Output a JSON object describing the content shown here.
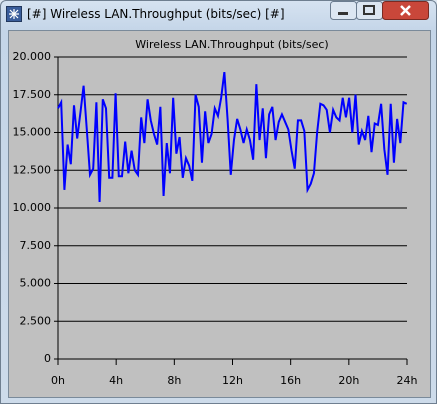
{
  "window": {
    "title": "[#] Wireless LAN.Throughput (bits/sec) [#]"
  },
  "chart_data": {
    "type": "line",
    "title": "Wireless LAN.Throughput (bits/sec)",
    "x": [
      0,
      0.22,
      0.44,
      0.66,
      0.88,
      1.1,
      1.32,
      1.54,
      1.76,
      1.98,
      2.2,
      2.42,
      2.64,
      2.86,
      3.08,
      3.3,
      3.52,
      3.74,
      3.96,
      4.18,
      4.4,
      4.62,
      4.84,
      5.06,
      5.28,
      5.5,
      5.72,
      5.94,
      6.16,
      6.38,
      6.6,
      6.82,
      7.04,
      7.26,
      7.48,
      7.7,
      7.92,
      8.14,
      8.36,
      8.58,
      8.8,
      9.02,
      9.24,
      9.46,
      9.68,
      9.9,
      10.12,
      10.34,
      10.56,
      10.78,
      11,
      11.22,
      11.44,
      11.66,
      11.88,
      12.1,
      12.32,
      12.54,
      12.76,
      12.98,
      13.2,
      13.42,
      13.64,
      13.86,
      14.08,
      14.3,
      14.52,
      14.74,
      14.96,
      15.18,
      15.4,
      15.62,
      15.84,
      16.06,
      16.28,
      16.5,
      16.72,
      16.94,
      17.16,
      17.38,
      17.6,
      17.82,
      18.04,
      18.26,
      18.48,
      18.7,
      18.92,
      19.14,
      19.36,
      19.58,
      19.8,
      20.02,
      20.24,
      20.46,
      20.68,
      20.9,
      21.12,
      21.34,
      21.56,
      21.78,
      22,
      22.22,
      22.44,
      22.66,
      22.88,
      23.1,
      23.32,
      23.54,
      23.76,
      23.98
    ],
    "series": [
      {
        "color": "#0000ff",
        "values": [
          16600,
          17000,
          11200,
          14200,
          12900,
          16800,
          14600,
          16300,
          18100,
          15200,
          12200,
          12600,
          17000,
          10400,
          17200,
          16600,
          12000,
          12000,
          17600,
          12100,
          12100,
          14400,
          12300,
          13800,
          12500,
          12200,
          16000,
          14300,
          17200,
          15800,
          14900,
          14200,
          16700,
          10800,
          14300,
          12300,
          17300,
          13600,
          14700,
          12000,
          13300,
          12800,
          11800,
          17500,
          16700,
          13000,
          16400,
          14300,
          14900,
          16600,
          16100,
          17300,
          19000,
          15900,
          12200,
          14500,
          15900,
          15200,
          14300,
          15200,
          14500,
          13200,
          18200,
          14500,
          16600,
          13300,
          16200,
          16700,
          14500,
          15700,
          16200,
          15700,
          15200,
          13800,
          12600,
          15800,
          15800,
          15100,
          11200,
          11600,
          12300,
          15000,
          16900,
          16800,
          16500,
          15000,
          16500,
          16000,
          15800,
          17300,
          16000,
          17300,
          15000,
          17500,
          14200,
          15100,
          14500,
          16100,
          13700,
          15600,
          15500,
          16900,
          13900,
          12200,
          16900,
          13000,
          15900,
          14300,
          17000,
          16900
        ]
      }
    ],
    "xlim": [
      0,
      24
    ],
    "xticks": [
      {
        "value": 0,
        "label": "0h"
      },
      {
        "value": 4,
        "label": "4h"
      },
      {
        "value": 8,
        "label": "8h"
      },
      {
        "value": 12,
        "label": "12h"
      },
      {
        "value": 16,
        "label": "16h"
      },
      {
        "value": 20,
        "label": "20h"
      },
      {
        "value": 24,
        "label": "24h"
      }
    ],
    "ylim": [
      0,
      20000
    ],
    "yticks": [
      0,
      {
        "value": 2500,
        "label": "2.500"
      },
      {
        "value": 5000,
        "label": "5.000"
      },
      {
        "value": 7500,
        "label": "7.500"
      },
      {
        "value": 10000,
        "label": "10.000"
      },
      {
        "value": 12500,
        "label": "12.500"
      },
      {
        "value": 15000,
        "label": "15.000"
      },
      {
        "value": 17500,
        "label": "17.500"
      },
      {
        "value": 20000,
        "label": "20.000"
      }
    ],
    "grid": true
  }
}
